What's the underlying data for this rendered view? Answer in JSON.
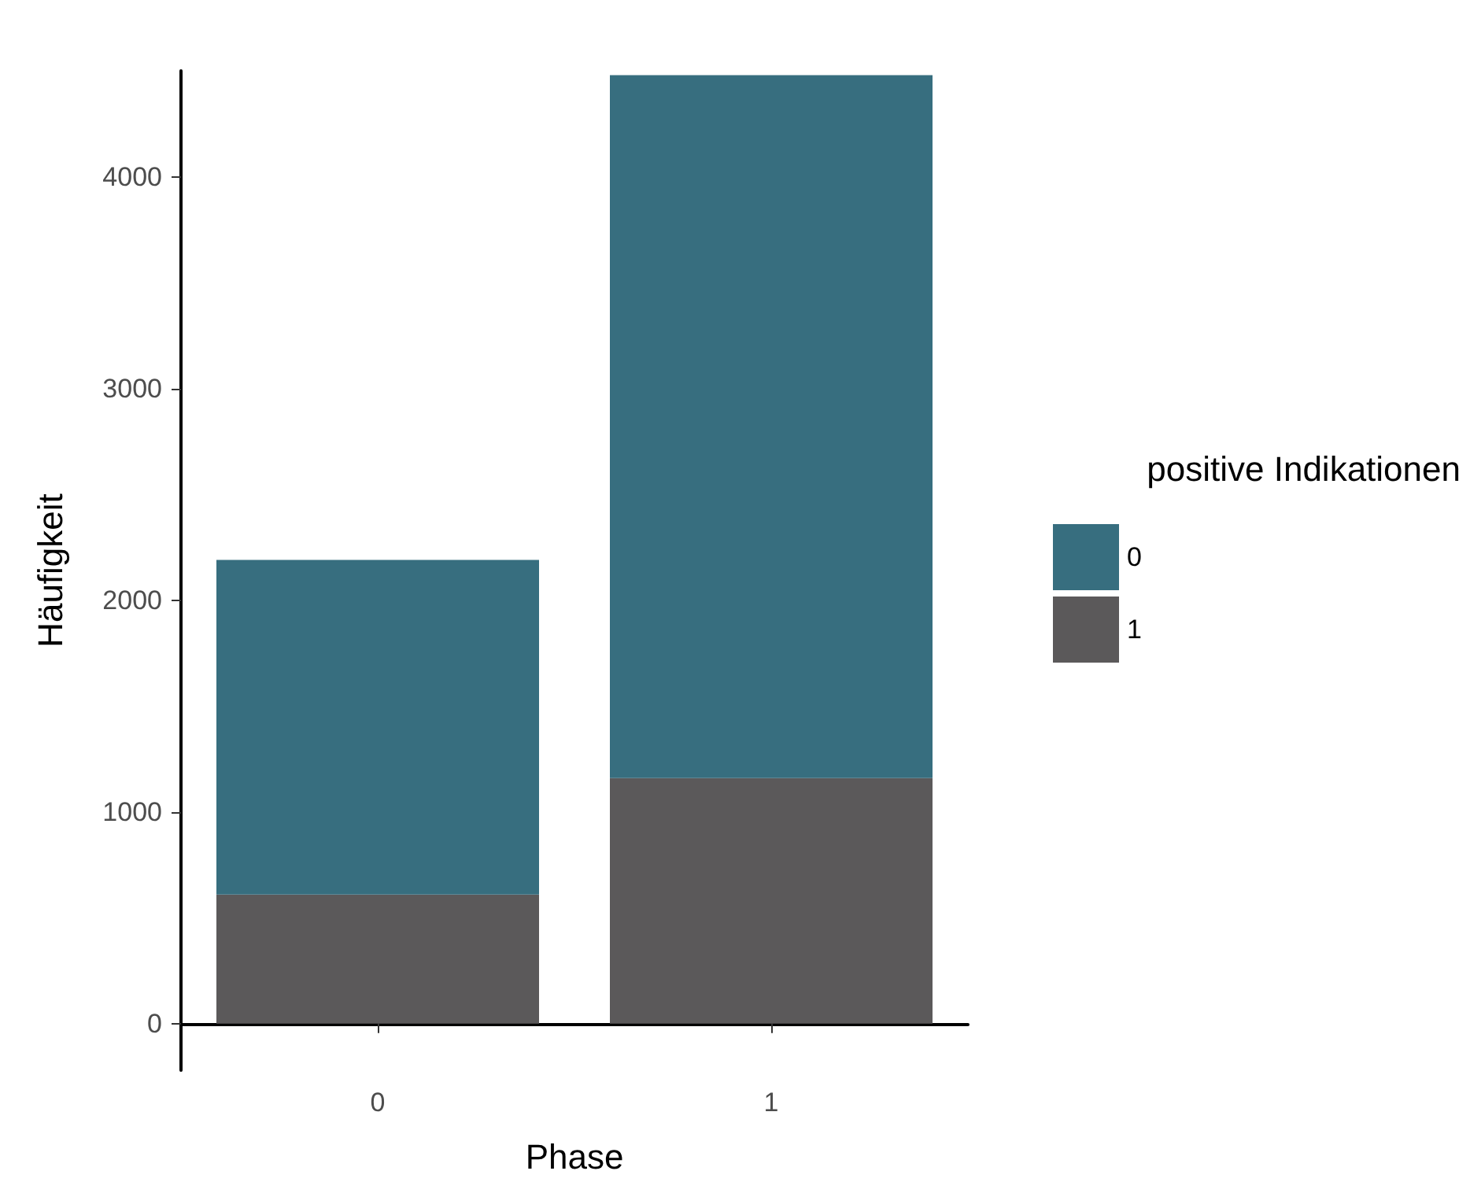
{
  "chart_data": {
    "type": "bar",
    "stacked": true,
    "xlabel": "Phase",
    "ylabel": "Häufigkeit",
    "legend_title": "positive Indikationen",
    "legend": "right",
    "categories": [
      "0",
      "1"
    ],
    "series": [
      {
        "name": "1",
        "color": "#5b595a",
        "values": [
          610,
          1160
        ]
      },
      {
        "name": "0",
        "color": "#376e7f",
        "values": [
          1580,
          3320
        ]
      }
    ],
    "ylim": [
      -220,
      4500
    ],
    "yticks": [
      0,
      1000,
      2000,
      3000,
      4000
    ],
    "grid": false
  }
}
